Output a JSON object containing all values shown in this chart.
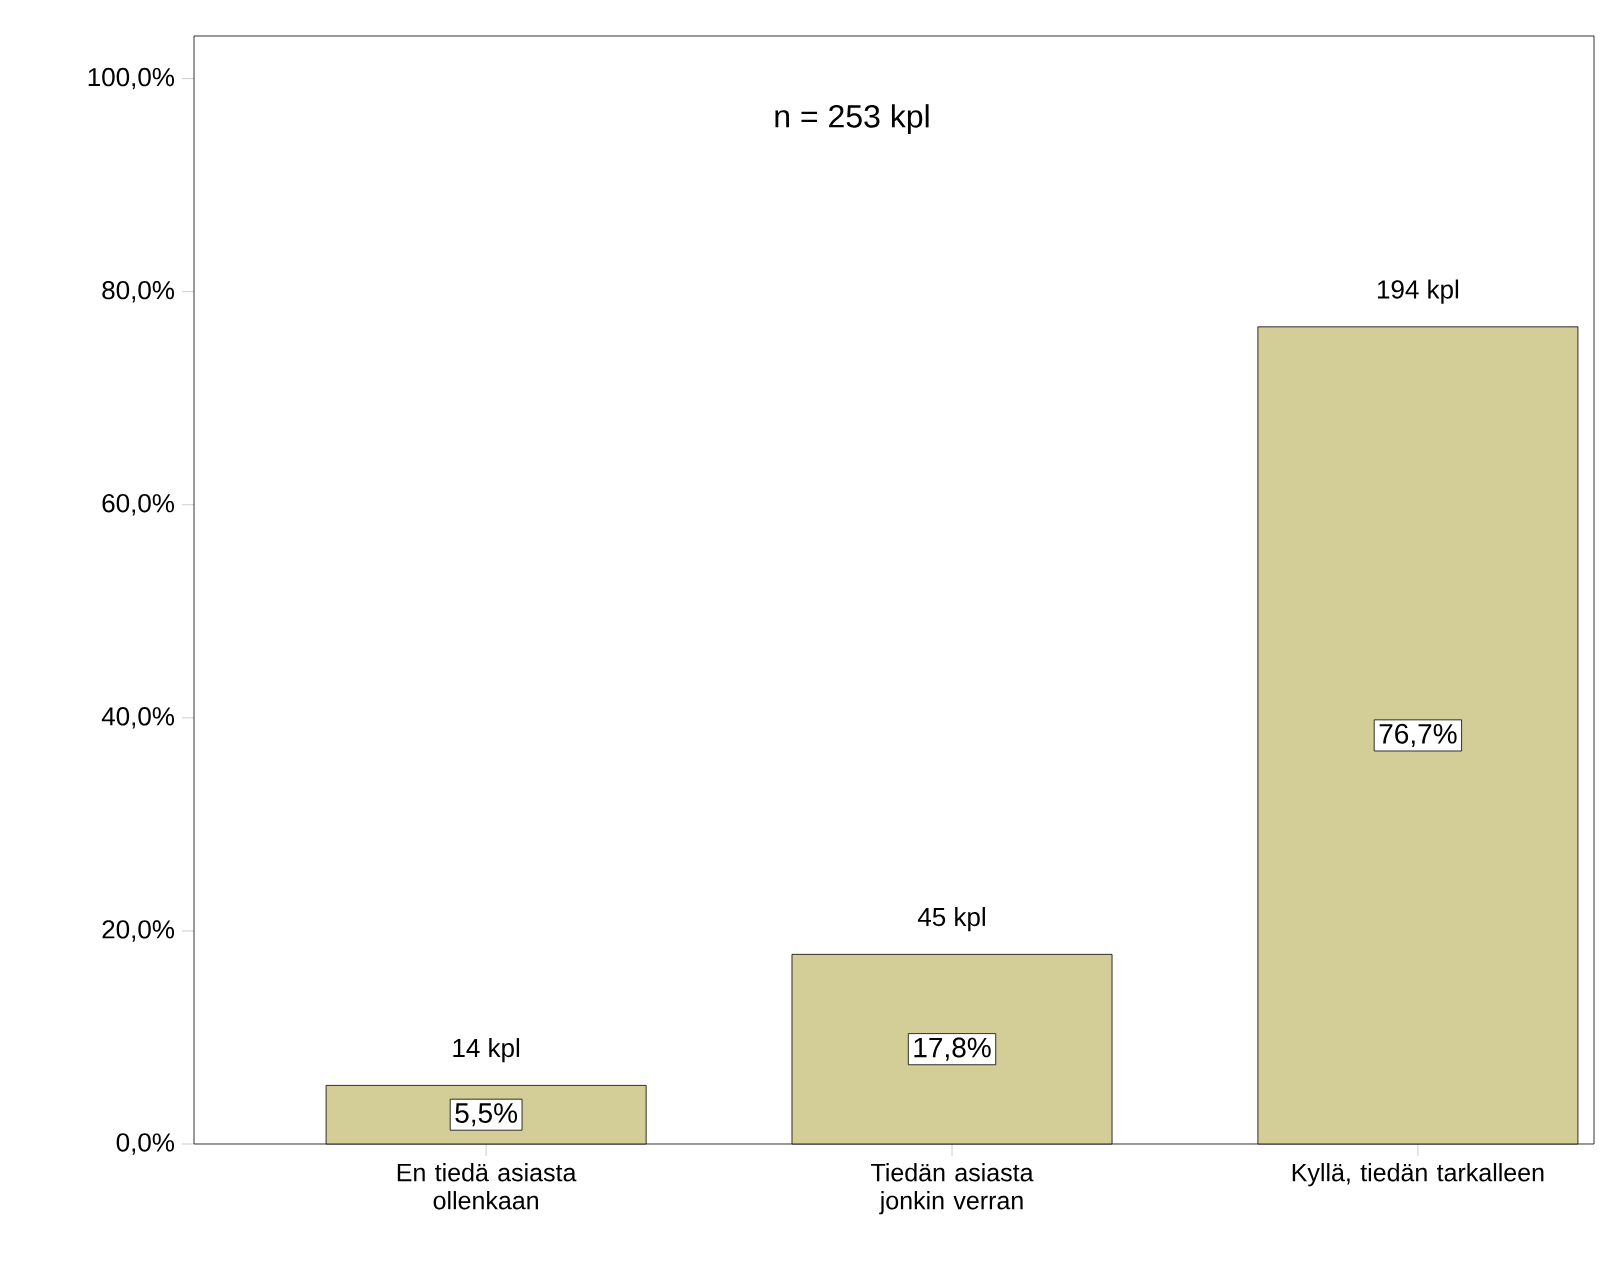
{
  "chart_data": {
    "type": "bar",
    "title": "n = 253 kpl",
    "categories": [
      "En tiedä asiasta ollenkaan",
      "Tiedän asiasta jonkin verran",
      "Kyllä, tiedän tarkalleen"
    ],
    "values": [
      5.5,
      17.8,
      76.7
    ],
    "value_labels": [
      "5,5%",
      "17,8%",
      "76,7%"
    ],
    "color": "#d3ce98",
    "ylim": [
      0,
      104
    ],
    "yticks": [
      {
        "value": 0,
        "label": "0,0%"
      },
      {
        "value": 20,
        "label": "20,0%"
      },
      {
        "value": 40,
        "label": "40,0%"
      },
      {
        "value": 60,
        "label": "60,0%"
      },
      {
        "value": 80,
        "label": "80,0%"
      },
      {
        "value": 100,
        "label": "100,0%"
      }
    ],
    "annotations": [
      {
        "text": "14 kpl",
        "x": "En tiedä asiasta ollenkaan",
        "y": 5.5
      },
      {
        "text": "45 kpl",
        "x": "Tiedän asiasta jonkin verran",
        "y": 17.8
      },
      {
        "text": "194 kpl",
        "x": "Kyllä, tiedän tarkalleen",
        "y": 76.7
      }
    ],
    "grid": false
  }
}
